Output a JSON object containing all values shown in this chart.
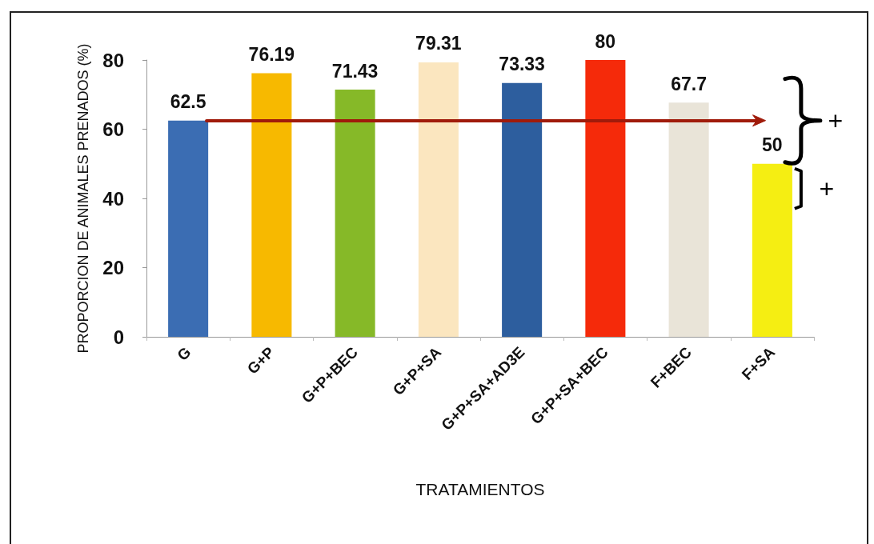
{
  "chart_data": {
    "type": "bar",
    "xlabel": "TRATAMIENTOS",
    "ylabel": "PROPORCION DE ANIMALES PRENADOS (%)",
    "categories": [
      "G",
      "G+P",
      "G+P+BEC",
      "G+P+SA",
      "G+P+SA+AD3E",
      "G+P+SA+BEC",
      "F+BEC",
      "F+SA"
    ],
    "values": [
      62.5,
      76.19,
      71.43,
      79.31,
      73.33,
      80,
      67.7,
      50
    ],
    "colors": [
      "#3b6db3",
      "#f7b900",
      "#86b928",
      "#fbe6bf",
      "#2d5e9e",
      "#f52a0a",
      "#e9e4d8",
      "#f5ee12"
    ],
    "ylim": [
      0,
      80
    ],
    "yticks": [
      0,
      20,
      40,
      60,
      80
    ],
    "grid": false,
    "data_labels": true,
    "ref_lines": [
      {
        "axis": "y",
        "value": 62.5,
        "color": "#a01b0b"
      }
    ],
    "annotations": [
      "+",
      "+"
    ]
  }
}
